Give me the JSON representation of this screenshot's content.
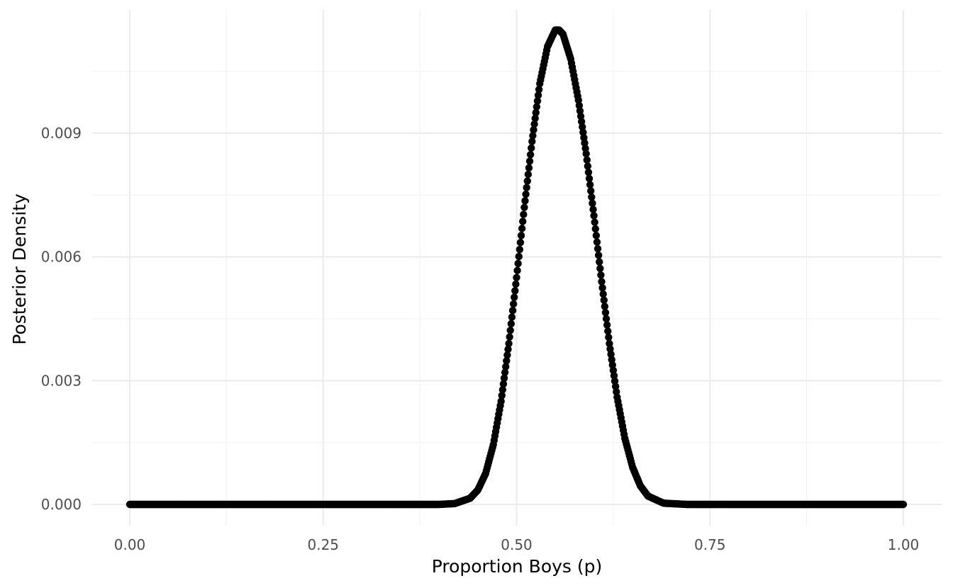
{
  "chart_data": {
    "type": "scatter",
    "title": "",
    "xlabel": "Proportion Boys (p)",
    "ylabel": "Posterior Density",
    "xlim": [
      0,
      1
    ],
    "ylim": [
      0,
      0.0119
    ],
    "x_ticks": [
      "0.00",
      "0.25",
      "0.50",
      "0.75",
      "1.00"
    ],
    "y_ticks": [
      "0.000",
      "0.003",
      "0.006",
      "0.009"
    ],
    "grid": true,
    "legend": "none",
    "point_color": "#000000",
    "series": [
      {
        "x": [
          0.0,
          0.4,
          0.42,
          0.44,
          0.45,
          0.46,
          0.47,
          0.48,
          0.49,
          0.5,
          0.51,
          0.52,
          0.53,
          0.54,
          0.55,
          0.555,
          0.56,
          0.57,
          0.58,
          0.59,
          0.6,
          0.61,
          0.62,
          0.63,
          0.64,
          0.65,
          0.66,
          0.67,
          0.69,
          0.72,
          1.0
        ],
        "y": [
          0.0,
          0.0,
          2e-05,
          0.00015,
          0.00035,
          0.00075,
          0.00145,
          0.0025,
          0.0039,
          0.0055,
          0.0072,
          0.0088,
          0.0102,
          0.0111,
          0.0115,
          0.0115,
          0.0114,
          0.0108,
          0.0098,
          0.0085,
          0.007,
          0.0054,
          0.0039,
          0.0026,
          0.0016,
          0.0009,
          0.00045,
          0.0002,
          3e-05,
          0.0,
          0.0
        ]
      }
    ]
  }
}
